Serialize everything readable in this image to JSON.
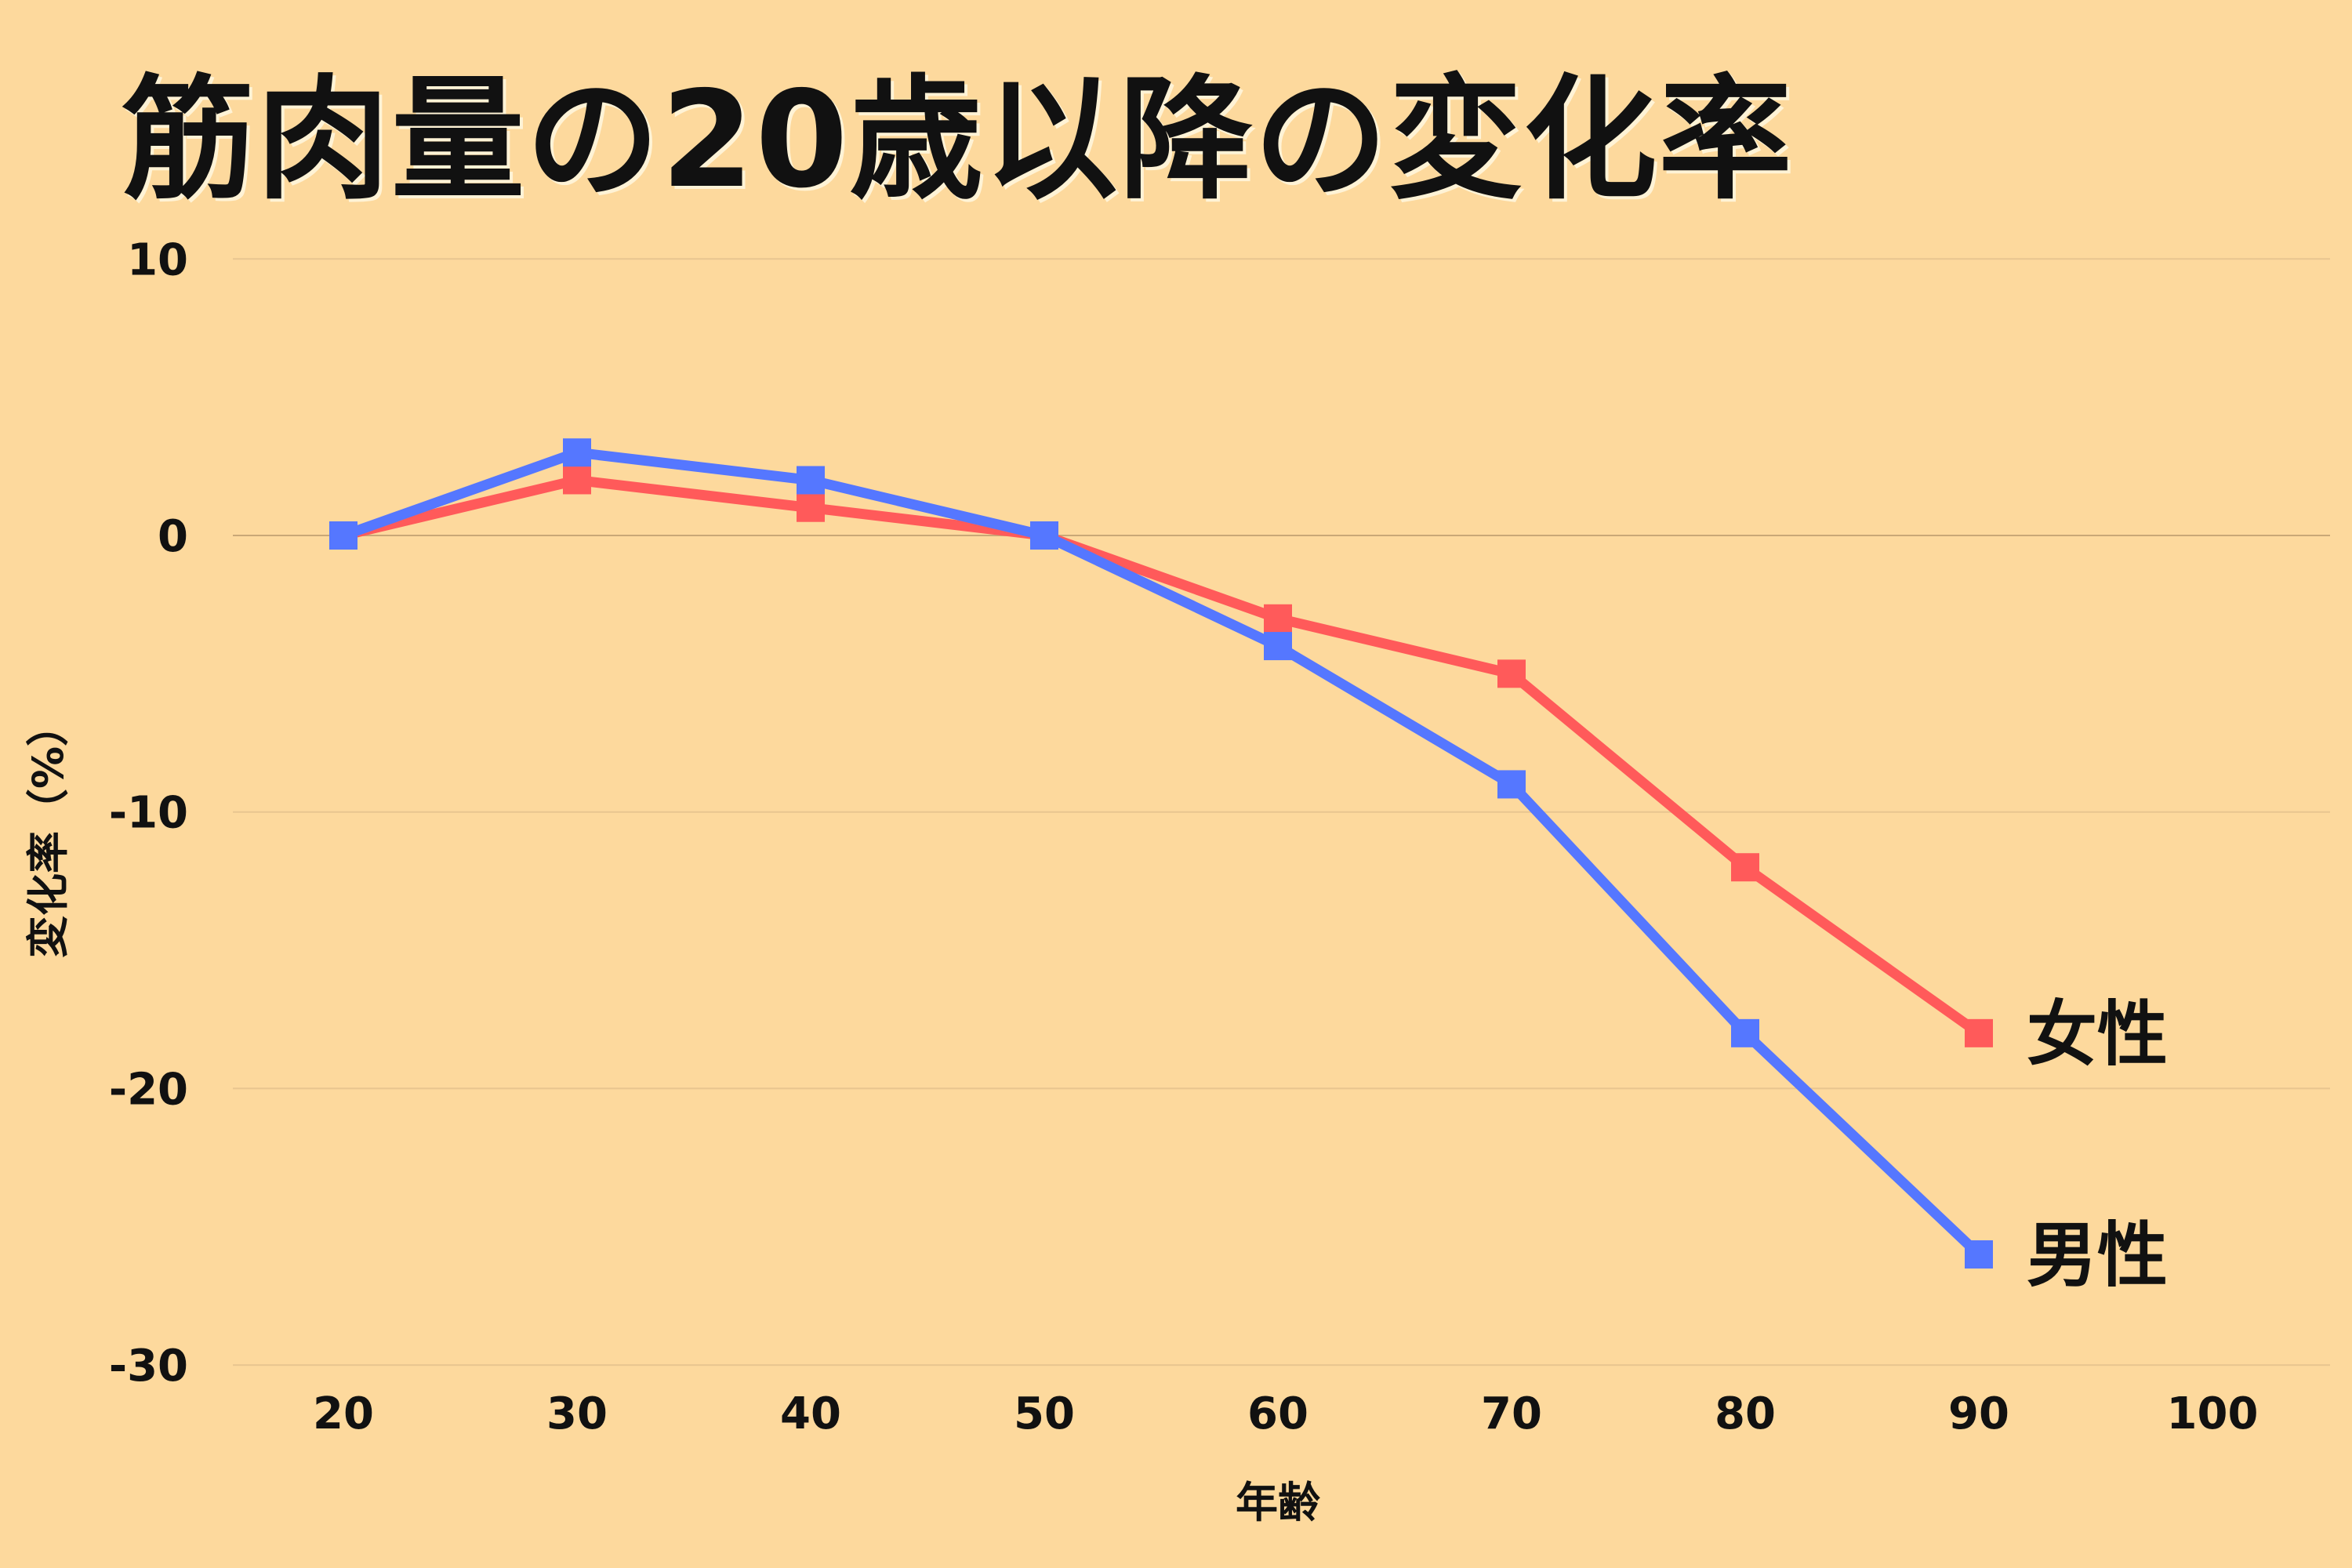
{
  "chart_data": {
    "type": "line",
    "title": "筋肉量の20歳以降の変化率",
    "xlabel": "年齢",
    "ylabel": "変化率（%）",
    "x": [
      20,
      30,
      40,
      50,
      60,
      70,
      80,
      90
    ],
    "xticks": [
      20,
      30,
      40,
      50,
      60,
      70,
      80,
      90,
      100
    ],
    "yticks": [
      10,
      0,
      -10,
      -20,
      -30
    ],
    "xlim": [
      15,
      105
    ],
    "ylim": [
      -30,
      10
    ],
    "grid": true,
    "legend": "inline-right",
    "series": [
      {
        "name": "女性",
        "color": "#FF5A5A",
        "values": [
          0,
          2,
          1,
          0,
          -3,
          -5,
          -12,
          -18
        ]
      },
      {
        "name": "男性",
        "color": "#5577FF",
        "values": [
          0,
          3,
          2,
          0,
          -4,
          -9,
          -18,
          -26
        ]
      }
    ],
    "background": "#FDD99D"
  }
}
